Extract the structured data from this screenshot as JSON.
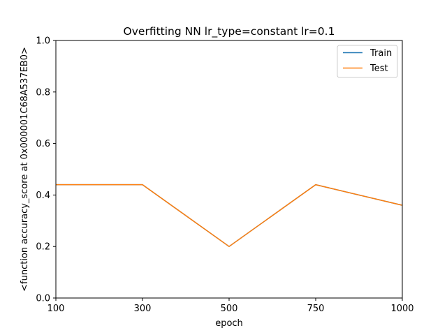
{
  "chart_data": {
    "type": "line",
    "title": "Overfitting NN lr_type=constant lr=0.1",
    "xlabel": "epoch",
    "ylabel": "<function accuracy_score at 0x000001C68A537EB0>",
    "x": [
      "100",
      "300",
      "500",
      "750",
      "1000"
    ],
    "xticks": [
      "100",
      "300",
      "500",
      "750",
      "1000"
    ],
    "yticks": [
      "0.0",
      "0.2",
      "0.4",
      "0.6",
      "0.8",
      "1.0"
    ],
    "ylim": [
      0,
      1
    ],
    "grid": false,
    "legend_position": "top-right",
    "series": [
      {
        "name": "Train",
        "color": "#1f77b4",
        "values": [
          0.44,
          0.44,
          0.2,
          0.44,
          0.36
        ]
      },
      {
        "name": "Test",
        "color": "#ff7f0e",
        "values": [
          0.44,
          0.44,
          0.2,
          0.44,
          0.36
        ]
      }
    ]
  }
}
